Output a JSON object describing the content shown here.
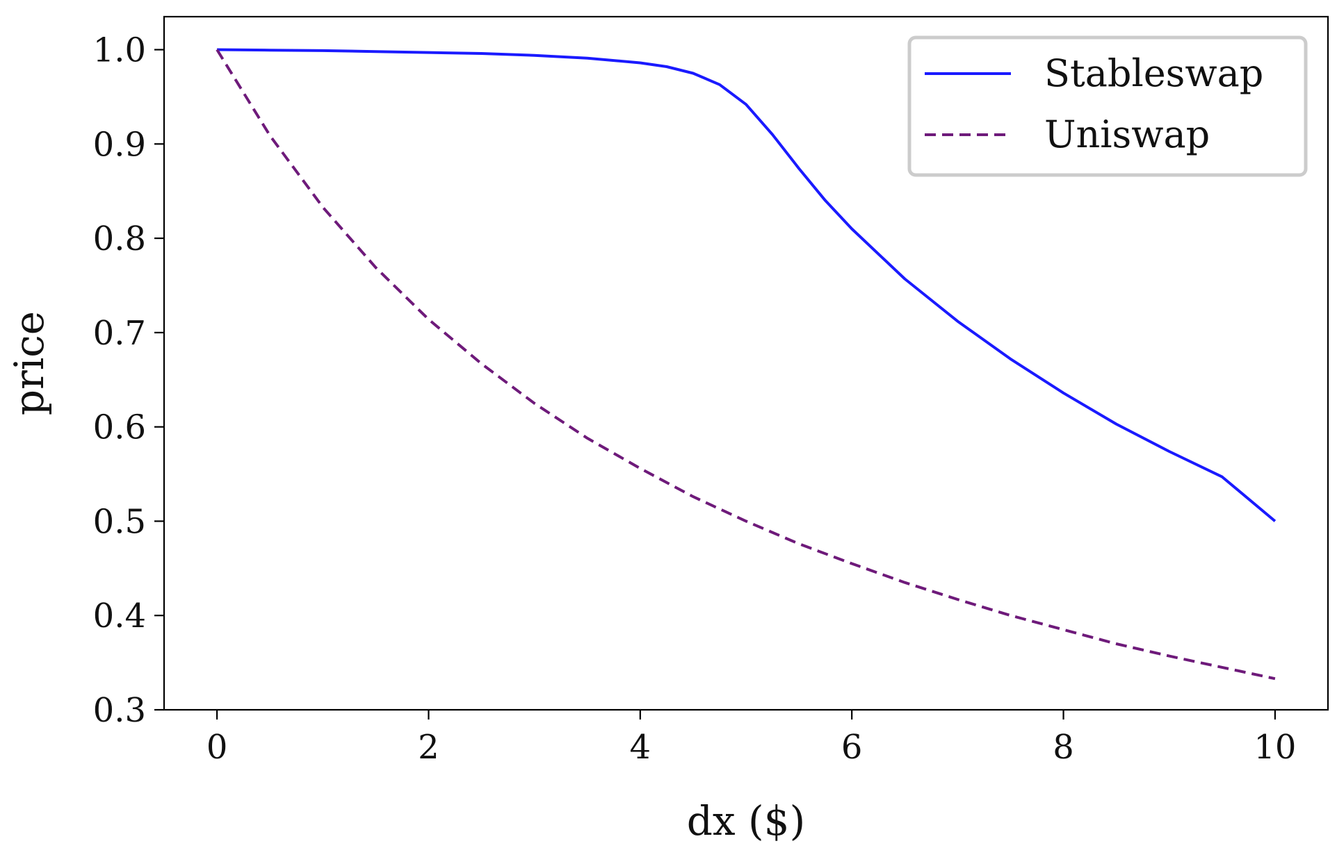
{
  "chart_data": {
    "type": "line",
    "title": "",
    "xlabel": "dx ($)",
    "ylabel": "price",
    "xlim": [
      -0.5,
      10.5
    ],
    "ylim": [
      0.3,
      1.035
    ],
    "xticks": [
      0,
      2,
      4,
      6,
      8,
      10
    ],
    "xtick_labels": [
      "0",
      "2",
      "4",
      "6",
      "8",
      "10"
    ],
    "yticks": [
      0.3,
      0.4,
      0.5,
      0.6,
      0.7,
      0.8,
      0.9,
      1.0
    ],
    "ytick_labels": [
      "0.3",
      "0.4",
      "0.5",
      "0.6",
      "0.7",
      "0.8",
      "0.9",
      "1.0"
    ],
    "grid": false,
    "legend_position": "top-right",
    "series": [
      {
        "name": "Stableswap",
        "color": "#1a1aff",
        "line_style": "solid",
        "x": [
          0,
          0.5,
          1,
          1.5,
          2,
          2.5,
          3,
          3.5,
          4,
          4.25,
          4.5,
          4.75,
          5,
          5.25,
          5.5,
          5.75,
          6,
          6.5,
          7,
          7.5,
          8,
          8.5,
          9,
          9.5,
          10
        ],
        "y": [
          1.0,
          0.9995,
          0.999,
          0.998,
          0.997,
          0.996,
          0.994,
          0.991,
          0.986,
          0.982,
          0.975,
          0.963,
          0.942,
          0.91,
          0.874,
          0.84,
          0.81,
          0.757,
          0.712,
          0.672,
          0.636,
          0.603,
          0.574,
          0.547,
          0.5
        ]
      },
      {
        "name": "Uniswap",
        "color": "#6e1a7a",
        "line_style": "dashed",
        "x": [
          0,
          0.5,
          1,
          1.5,
          2,
          2.5,
          3,
          3.5,
          4,
          4.5,
          5,
          5.5,
          6,
          6.5,
          7,
          7.5,
          8,
          8.5,
          9,
          9.5,
          10
        ],
        "y": [
          1.0,
          0.909,
          0.833,
          0.769,
          0.714,
          0.667,
          0.625,
          0.588,
          0.556,
          0.526,
          0.5,
          0.476,
          0.455,
          0.435,
          0.417,
          0.4,
          0.385,
          0.37,
          0.357,
          0.345,
          0.333
        ]
      }
    ]
  }
}
